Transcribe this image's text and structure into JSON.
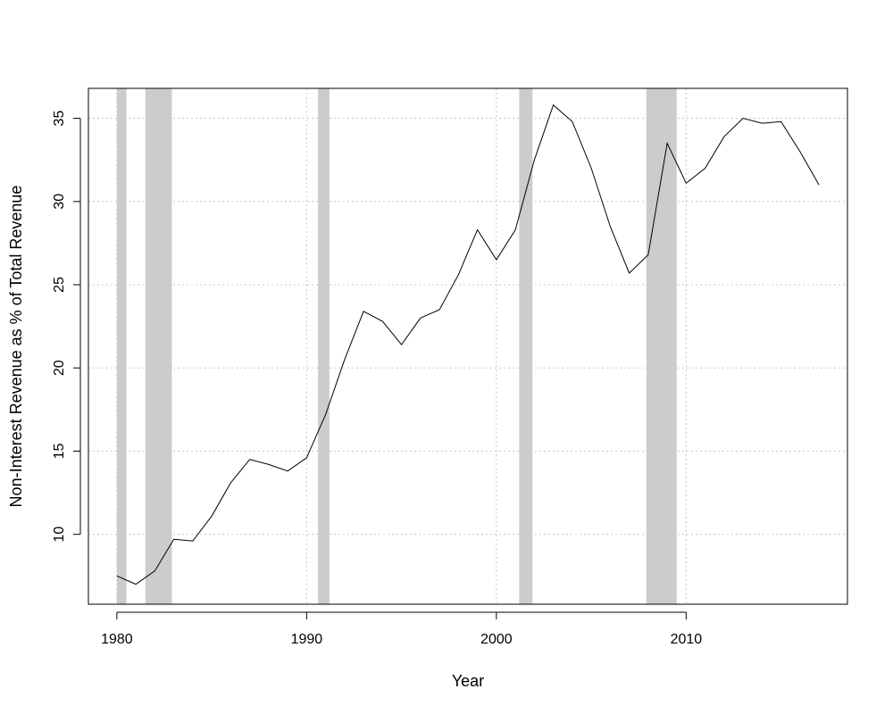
{
  "chart_data": {
    "type": "line",
    "title": "",
    "xlabel": "Year",
    "ylabel": "Non-Interest Revenue as % of Total Revenue",
    "xlim": [
      1978.5,
      2018.5
    ],
    "ylim": [
      5.8,
      36.8
    ],
    "x_ticks": [
      1980,
      1990,
      2000,
      2010
    ],
    "y_ticks": [
      10,
      15,
      20,
      25,
      30,
      35
    ],
    "grid": true,
    "colors": {
      "line": "#000000",
      "recession": "#cccccc",
      "grid": "#c8c8c8"
    },
    "recessions": [
      {
        "start": 1980.0,
        "end": 1980.5
      },
      {
        "start": 1981.5,
        "end": 1982.9
      },
      {
        "start": 1990.6,
        "end": 1991.2
      },
      {
        "start": 2001.2,
        "end": 2001.9
      },
      {
        "start": 2007.9,
        "end": 2009.5
      }
    ],
    "x": [
      1980,
      1981,
      1982,
      1983,
      1984,
      1985,
      1986,
      1987,
      1988,
      1989,
      1990,
      1991,
      1992,
      1993,
      1994,
      1995,
      1996,
      1997,
      1998,
      1999,
      2000,
      2001,
      2002,
      2003,
      2004,
      2005,
      2006,
      2007,
      2008,
      2009,
      2010,
      2011,
      2012,
      2013,
      2014,
      2015,
      2016,
      2017
    ],
    "series": [
      {
        "values": [
          7.5,
          7.0,
          7.8,
          9.7,
          9.6,
          11.1,
          13.1,
          14.5,
          14.2,
          13.8,
          14.6,
          17.2,
          20.5,
          23.4,
          22.8,
          21.4,
          23.0,
          23.5,
          25.6,
          28.3,
          26.5,
          28.3,
          32.5,
          35.8,
          34.8,
          32.0,
          28.5,
          25.7,
          26.8,
          33.5,
          31.1,
          32.0,
          33.9,
          35.0,
          34.7,
          34.8,
          33.0,
          31.0
        ]
      }
    ]
  }
}
